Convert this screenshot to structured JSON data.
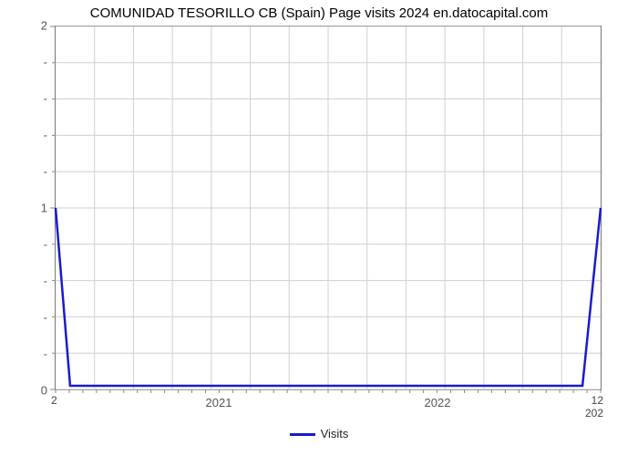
{
  "chart": {
    "type": "line",
    "title": "COMUNIDAD TESORILLO CB (Spain) Page visits 2024 en.datocapital.com",
    "title_fontsize": 15,
    "background_color": "#ffffff",
    "grid_color": "#cfcfcf",
    "axis_color": "#777777",
    "tick_label_color": "#555555",
    "x_range": [
      0,
      600
    ],
    "y_range": [
      0,
      2
    ],
    "y_ticks_major": [
      0,
      1,
      2
    ],
    "y_ticks_minor_count_between": 4,
    "x_grid_count": 14,
    "x_tick_labels": [
      {
        "label": "2021",
        "pos": 180
      },
      {
        "label": "2022",
        "pos": 420
      }
    ],
    "x_sublabel_left": "2",
    "x_sublabel_right_top": "12",
    "x_sublabel_right_bot": "202",
    "series": {
      "name": "Visits",
      "color": "#1a1acf",
      "points": [
        {
          "x": 0,
          "y": 1.0
        },
        {
          "x": 16,
          "y": 0.02
        },
        {
          "x": 580,
          "y": 0.02
        },
        {
          "x": 600,
          "y": 1.0
        }
      ]
    },
    "legend": {
      "label": "Visits"
    }
  }
}
